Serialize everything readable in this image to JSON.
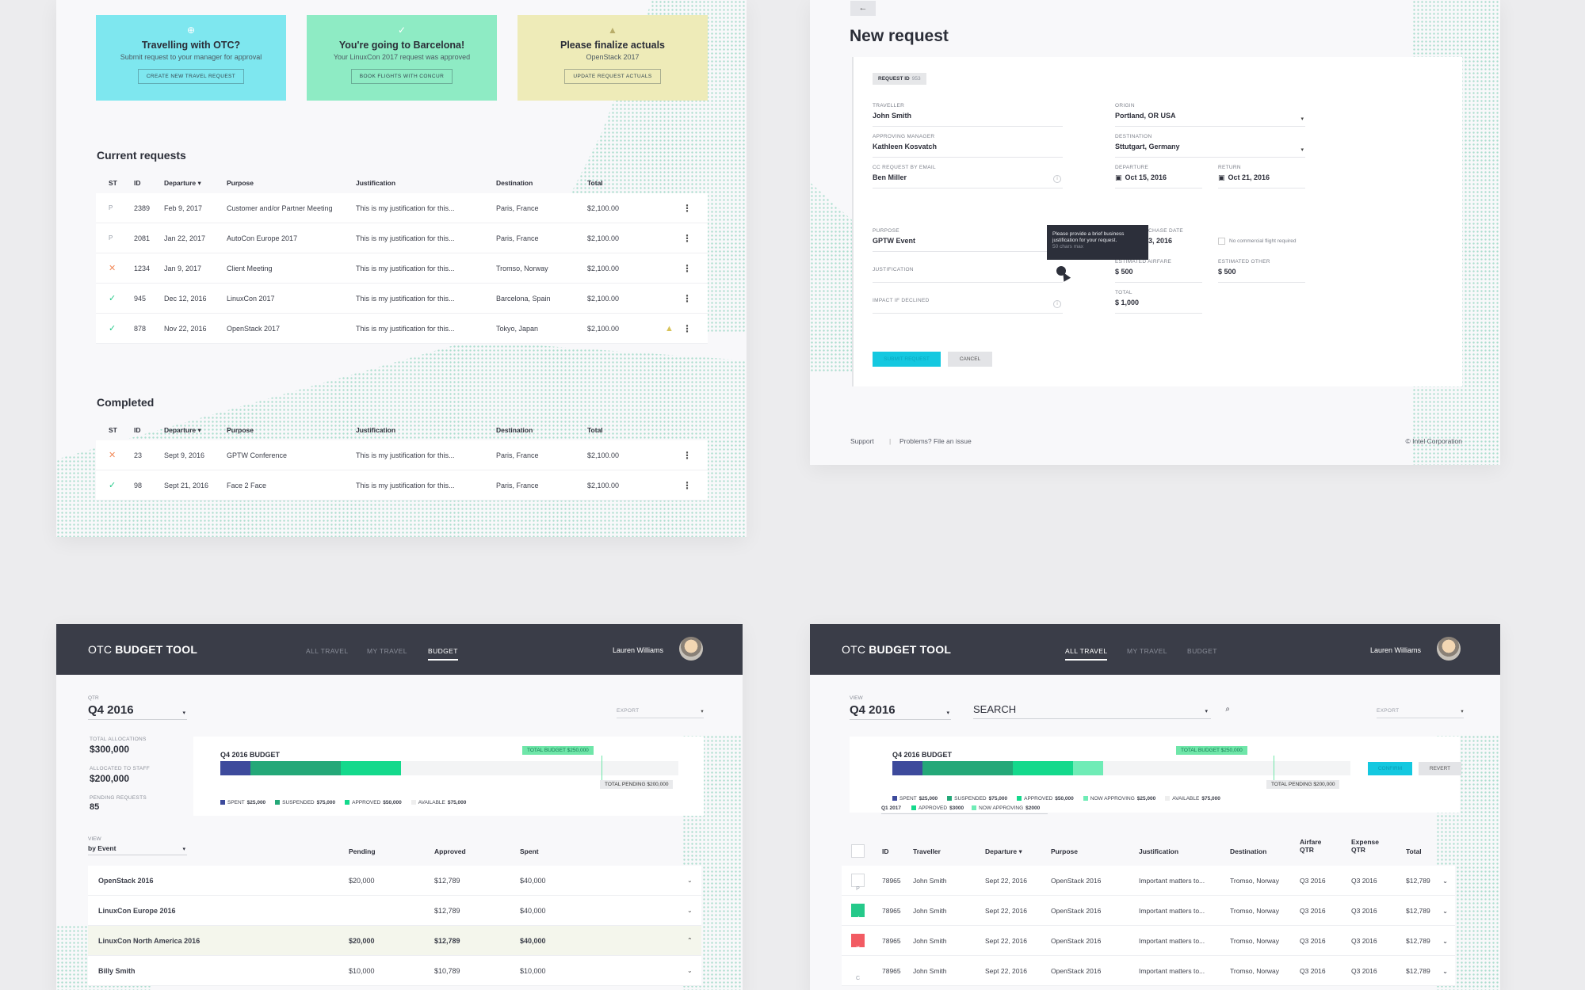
{
  "requests_page": {
    "cards": [
      {
        "title": "Travelling with OTC?",
        "text": "Submit request to your manager for approval",
        "button": "CREATE NEW TRAVEL REQUEST",
        "icon": "plus-circle-icon",
        "color": "#7ee7ef"
      },
      {
        "title": "You're going to Barcelona!",
        "text": "Your LinuxCon 2017 request was approved",
        "button": "BOOK FLIGHTS WITH CONCUR",
        "icon": "check-circle-icon",
        "color": "#8eebc4"
      },
      {
        "title": "Please finalize actuals",
        "text": "OpenStack 2017",
        "button": "UPDATE REQUEST ACTUALS",
        "icon": "warning-icon",
        "color": "#eeebb8"
      }
    ],
    "current": {
      "title": "Current requests",
      "columns": [
        "ST",
        "ID",
        "Departure",
        "Purpose",
        "Justification",
        "Destination",
        "Total"
      ],
      "rows": [
        {
          "st": "P",
          "id": "2389",
          "departure": "Feb 9, 2017",
          "purpose": "Customer and/or Partner Meeting",
          "justification": "This is my justification for this...",
          "destination": "Paris, France",
          "total": "$2,100.00"
        },
        {
          "st": "P",
          "id": "2081",
          "departure": "Jan 22, 2017",
          "purpose": "AutoCon Europe 2017",
          "justification": "This is my justification for this...",
          "destination": "Paris, France",
          "total": "$2,100.00"
        },
        {
          "st": "✕",
          "id": "1234",
          "departure": "Jan 9, 2017",
          "purpose": "Client Meeting",
          "justification": "This is my justification for this...",
          "destination": "Tromso, Norway",
          "total": "$2,100.00"
        },
        {
          "st": "✓",
          "id": "945",
          "departure": "Dec 12, 2016",
          "purpose": "LinuxCon 2017",
          "justification": "This is my justification for this...",
          "destination": "Barcelona, Spain",
          "total": "$2,100.00"
        },
        {
          "st": "✓",
          "id": "878",
          "departure": "Nov 22, 2016",
          "purpose": "OpenStack 2017",
          "justification": "This is my justification for this...",
          "destination": "Tokyo, Japan",
          "total": "$2,100.00"
        }
      ]
    },
    "completed": {
      "title": "Completed",
      "columns": [
        "ST",
        "ID",
        "Departure",
        "Purpose",
        "Justification",
        "Destination",
        "Total"
      ],
      "rows": [
        {
          "st": "✕",
          "id": "23",
          "departure": "Sept 9, 2016",
          "purpose": "GPTW Conference",
          "justification": "This is my justification for this...",
          "destination": "Paris, France",
          "total": "$2,100.00"
        },
        {
          "st": "✓",
          "id": "98",
          "departure": "Sept 21, 2016",
          "purpose": "Face 2 Face",
          "justification": "This is my justification for this...",
          "destination": "Paris, France",
          "total": "$2,100.00"
        }
      ]
    }
  },
  "new_request": {
    "back": "←",
    "title": "New request",
    "request_id_label": "REQUEST ID",
    "request_id": "953",
    "traveller_label": "TRAVELLER",
    "traveller": "John Smith",
    "origin_label": "ORIGIN",
    "origin": "Portland, OR USA",
    "manager_label": "APPROVING MANAGER",
    "manager": "Kathleen Kosvatch",
    "destination_label": "DESTINATION",
    "destination": "Sttutgart, Germany",
    "cc_label": "CC REQUEST BY EMAIL",
    "cc": "Ben Miller",
    "departure_label": "DEPARTURE",
    "departure": "Oct 15, 2016",
    "return_label": "RETURN",
    "return": "Oct 21, 2016",
    "purpose_label": "PURPOSE",
    "purpose": "GPTW Event",
    "purchase_label": "CHASE DATE",
    "purchase": "3, 2016",
    "no_flight": "No commercial flight required",
    "justification_label": "JUSTIFICATION",
    "airfare_label": "ESTIMATED AIRFARE",
    "airfare": "$ 500",
    "other_label": "ESTIMATED OTHER",
    "other": "$ 500",
    "impact_label": "IMPACT IF DECLINED",
    "total_label": "TOTAL",
    "total": "$ 1,000",
    "tooltip": "Please provide a brief business justification for your request.",
    "tooltip_sub": "50 chars max",
    "submit": "SUBMIT REQUEST",
    "cancel": "CANCEL",
    "footer_support": "Support",
    "footer_sep": "|",
    "footer_issue": "Problems? File an issue",
    "footer_copy": "© Intel Corporation"
  },
  "budget_c": {
    "logo_light": "OTC ",
    "logo_bold": "BUDGET TOOL",
    "nav": [
      "ALL TRAVEL",
      "MY TRAVEL",
      "BUDGET"
    ],
    "active_nav": 2,
    "user": "Lauren Williams",
    "qtr_label": "QTR",
    "qtr": "Q4 2016",
    "export": "EXPORT",
    "stats": [
      {
        "label": "TOTAL ALLOCATIONS",
        "value": "$300,000"
      },
      {
        "label": "ALLOCATED TO STAFF",
        "value": "$200,000"
      },
      {
        "label": "PENDING REQUESTS",
        "value": "85"
      }
    ],
    "budget_title": "Q4 2016 BUDGET",
    "total_budget": "TOTAL BUDGET $250,000",
    "total_pending": "TOTAL PENDING $200,000",
    "legend": [
      {
        "label": "SPENT",
        "value": "$25,000",
        "color": "#3d4a9c"
      },
      {
        "label": "SUSPENDED",
        "value": "$75,000",
        "color": "#24a878"
      },
      {
        "label": "APPROVED",
        "value": "$50,000",
        "color": "#14d98c"
      },
      {
        "label": "AVAILABLE",
        "value": "$75,000",
        "color": "#eeeeee"
      }
    ],
    "view_label": "VIEW",
    "view": "by Event",
    "columns": [
      "Pending",
      "Approved",
      "Spent"
    ],
    "rows": [
      {
        "name": "OpenStack 2016",
        "pending": "$20,000",
        "approved": "$12,789",
        "spent": "$40,000",
        "chevron": "⌄"
      },
      {
        "name": "LinuxCon Europe 2016",
        "pending": "",
        "approved": "$12,789",
        "spent": "$40,000",
        "chevron": "⌄"
      },
      {
        "name": "LinuxCon North America 2016",
        "pending": "$20,000",
        "approved": "$12,789",
        "spent": "$40,000",
        "chevron": "⌃"
      },
      {
        "name": "Billy Smith",
        "pending": "$10,000",
        "approved": "$10,789",
        "spent": "$10,000",
        "chevron": "⌄"
      }
    ]
  },
  "budget_d": {
    "logo_light": "OTC ",
    "logo_bold": "BUDGET TOOL",
    "nav": [
      "ALL TRAVEL",
      "MY TRAVEL",
      "BUDGET"
    ],
    "active_nav": 0,
    "user": "Lauren Williams",
    "view_label": "VIEW",
    "view": "Q4 2016",
    "search": "SEARCH",
    "export": "EXPORT",
    "budget_title": "Q4 2016 BUDGET",
    "total_budget": "TOTAL BUDGET $250,000",
    "total_pending": "TOTAL PENDING $200,000",
    "confirm": "CONFIRM",
    "revert": "REVERT",
    "legend": [
      {
        "label": "SPENT",
        "value": "$25,000",
        "color": "#3d4a9c"
      },
      {
        "label": "SUSPENDED",
        "value": "$75,000",
        "color": "#24a878"
      },
      {
        "label": "APPROVED",
        "value": "$50,000",
        "color": "#14d98c"
      },
      {
        "label": "NOW APPROVING",
        "value": "$25,000",
        "color": "#6fecb6"
      },
      {
        "label": "AVAILABLE",
        "value": "$75,000",
        "color": "#eeeeee"
      }
    ],
    "subtabs": [
      {
        "label": "Q1 2017",
        "color": ""
      },
      {
        "label": "APPROVED",
        "value": "$3000",
        "color": "#14d98c"
      },
      {
        "label": "NOW APPROVING",
        "value": "$2000",
        "color": "#6fecb6"
      }
    ],
    "columns": [
      "ID",
      "Traveller",
      "Departure",
      "Purpose",
      "Justification",
      "Destination",
      "Airfare QTR",
      "Expense QTR",
      "Total"
    ],
    "rows": [
      {
        "st": "P",
        "id": "78965",
        "traveller": "John Smith",
        "departure": "Sept 22, 2016",
        "purpose": "OpenStack 2016",
        "justification": "Important matters to...",
        "destination": "Tromso, Norway",
        "airfare": "Q3 2016",
        "expense": "Q3 2016",
        "total": "$12,789"
      },
      {
        "st": "✓",
        "id": "78965",
        "traveller": "John Smith",
        "departure": "Sept 22, 2016",
        "purpose": "OpenStack 2016",
        "justification": "Important matters to...",
        "destination": "Tromso, Norway",
        "airfare": "Q3 2016",
        "expense": "Q3 2016",
        "total": "$12,789"
      },
      {
        "st": "✕",
        "id": "78965",
        "traveller": "John Smith",
        "departure": "Sept 22, 2016",
        "purpose": "OpenStack 2016",
        "justification": "Important matters to...",
        "destination": "Tromso, Norway",
        "airfare": "Q3 2016",
        "expense": "Q3 2016",
        "total": "$12,789"
      },
      {
        "st": "C",
        "id": "78965",
        "traveller": "John Smith",
        "departure": "Sept 22, 2016",
        "purpose": "OpenStack 2016",
        "justification": "Important matters to...",
        "destination": "Tromso, Norway",
        "airfare": "Q3 2016",
        "expense": "Q3 2016",
        "total": "$12,789"
      }
    ]
  }
}
